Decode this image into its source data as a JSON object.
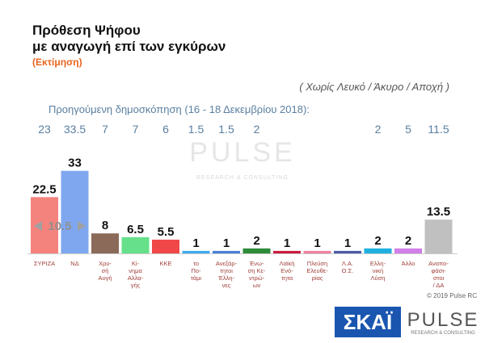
{
  "chart_data": {
    "type": "bar",
    "title": [
      "Πρόθεση Ψήφου",
      "με αναγωγή επί των εγκύρων"
    ],
    "subtitle": "(Εκτίμηση)",
    "note": "( Χωρίς Λευκό / Άκυρο / Αποχή )",
    "categories": [
      "ΣΥΡΙΖΑ",
      "ΝΔ",
      "Χρυ-\nσή\nΑυγή",
      "Κί-\nνημα\nΑλλα-\nγής",
      "ΚΚΕ",
      "το\nΠο-\nτάμι",
      "Ανεξάρ-\nτητοι\nΈλλη-\nνες",
      "Ένω-\nση Κε-\nντρώ-\nων",
      "Λαϊκή\nΕνό-\nτητα",
      "Πλεύση\nΕλευθε-\nρίας",
      "Λ.Α.\nΟ.Σ.",
      "Ελλη-\nνική\nΛύση",
      "Άλλο",
      "Αναπο-\nφάσι-\nστοι\n/ ΔΑ"
    ],
    "values": [
      22.5,
      33,
      8,
      6.5,
      5.5,
      1,
      1,
      2,
      1,
      1,
      1,
      2,
      2,
      13.5
    ],
    "colors": [
      "#f4837d",
      "#7fa7f0",
      "#8b6a5a",
      "#66e08a",
      "#f04848",
      "#3fa9f0",
      "#4a7fd8",
      "#2e8b3a",
      "#cc1b3e",
      "#f07fa0",
      "#4a5aa8",
      "#20b0e0",
      "#d080e8",
      "#c0c0c0"
    ],
    "previous": {
      "name": "Προηγούμενη δημοσκόπηση (16 - 18 Δεκεμβρίου 2018):",
      "values": [
        23,
        33.5,
        7,
        7,
        6,
        1.5,
        1.5,
        2,
        null,
        null,
        null,
        2,
        5,
        11.5
      ]
    },
    "lead_annotation": 10.5,
    "watermark": [
      "PULSE",
      "RESEARCH & CONSULTING"
    ],
    "copyright": "© 2019 Pulse RC",
    "logos": [
      "ΣΚΑΪ",
      "PULSE",
      "RESEARCH & CONSULTING"
    ]
  }
}
